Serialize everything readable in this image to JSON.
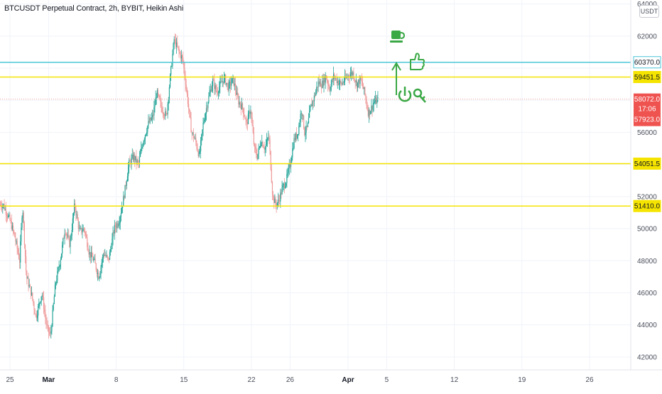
{
  "title": "BTCUSDT Perpetual Contract, 2h, BYBIT, Heikin Ashi",
  "currency": "USDT",
  "colors": {
    "up": "#26a69a",
    "down": "#ef9a9a",
    "yellow_line": "#f5e400",
    "cyan_line": "#4dc6d8",
    "annotation": "#3aa845",
    "last_price_bg": "#ef5350"
  },
  "chart_data": {
    "type": "candlestick",
    "style": "Heikin Ashi",
    "interval": "2h",
    "exchange": "BYBIT",
    "symbol": "BTCUSDT Perpetual Contract",
    "ylim": [
      41300,
      64300
    ],
    "y_ticks": [
      42000,
      44000,
      46000,
      48000,
      50000,
      52000,
      56000,
      62000,
      64000
    ],
    "x_ticks": [
      {
        "label": "25",
        "x": 0,
        "bold": false
      },
      {
        "label": "Mar",
        "x": 4,
        "bold": true
      },
      {
        "label": "8",
        "x": 11,
        "bold": false
      },
      {
        "label": "15",
        "x": 18,
        "bold": false
      },
      {
        "label": "22",
        "x": 25,
        "bold": false
      },
      {
        "label": "26",
        "x": 29,
        "bold": false
      },
      {
        "label": "Apr",
        "x": 35,
        "bold": true
      },
      {
        "label": "5",
        "x": 39,
        "bold": false
      },
      {
        "label": "12",
        "x": 46,
        "bold": false
      },
      {
        "label": "19",
        "x": 53,
        "bold": false
      },
      {
        "label": "26",
        "x": 60,
        "bold": false
      }
    ],
    "price_path": [
      [
        -0.7,
        51500
      ],
      [
        0,
        50500
      ],
      [
        0.5,
        49500
      ],
      [
        1,
        48000
      ],
      [
        1.3,
        51500
      ],
      [
        1.7,
        47000
      ],
      [
        2.2,
        46000
      ],
      [
        2.7,
        44500
      ],
      [
        3.3,
        46000
      ],
      [
        3.8,
        43900
      ],
      [
        4.2,
        43300
      ],
      [
        4.7,
        46500
      ],
      [
        5.2,
        48000
      ],
      [
        5.7,
        50000
      ],
      [
        6.2,
        49000
      ],
      [
        6.7,
        51500
      ],
      [
        7.2,
        49800
      ],
      [
        7.7,
        50000
      ],
      [
        8.2,
        48500
      ],
      [
        8.7,
        48000
      ],
      [
        9.2,
        47000
      ],
      [
        9.7,
        48500
      ],
      [
        10.2,
        48000
      ],
      [
        10.8,
        50000
      ],
      [
        11.3,
        50500
      ],
      [
        11.8,
        52000
      ],
      [
        12.3,
        54000
      ],
      [
        12.8,
        54500
      ],
      [
        13.3,
        54000
      ],
      [
        13.8,
        55500
      ],
      [
        14.3,
        56500
      ],
      [
        14.8,
        57000
      ],
      [
        15.2,
        58500
      ],
      [
        15.7,
        57500
      ],
      [
        16.2,
        57000
      ],
      [
        16.6,
        59500
      ],
      [
        17,
        61800
      ],
      [
        17.5,
        61000
      ],
      [
        17.9,
        60500
      ],
      [
        18.4,
        58000
      ],
      [
        18.8,
        56000
      ],
      [
        19.2,
        55500
      ],
      [
        19.6,
        54500
      ],
      [
        20,
        56500
      ],
      [
        20.5,
        58000
      ],
      [
        21,
        59200
      ],
      [
        21.4,
        58500
      ],
      [
        21.8,
        59000
      ],
      [
        22.2,
        59400
      ],
      [
        22.6,
        58800
      ],
      [
        23.1,
        59300
      ],
      [
        23.6,
        58000
      ],
      [
        24.1,
        57500
      ],
      [
        24.5,
        56500
      ],
      [
        24.9,
        57500
      ],
      [
        25.3,
        55000
      ],
      [
        25.6,
        54500
      ],
      [
        26,
        55500
      ],
      [
        26.4,
        55000
      ],
      [
        26.8,
        55800
      ],
      [
        27.2,
        52000
      ],
      [
        27.5,
        51500
      ],
      [
        27.8,
        51700
      ],
      [
        28.2,
        52500
      ],
      [
        28.6,
        53000
      ],
      [
        29,
        54000
      ],
      [
        29.4,
        55500
      ],
      [
        29.8,
        56000
      ],
      [
        30.2,
        57500
      ],
      [
        30.5,
        56000
      ],
      [
        30.8,
        56300
      ],
      [
        31.1,
        57500
      ],
      [
        31.5,
        58200
      ],
      [
        31.9,
        59100
      ],
      [
        32.3,
        59000
      ],
      [
        32.7,
        59500
      ],
      [
        33.1,
        58700
      ],
      [
        33.5,
        59500
      ],
      [
        33.9,
        59200
      ],
      [
        34.3,
        59000
      ],
      [
        34.7,
        59300
      ],
      [
        35.1,
        59600
      ],
      [
        35.5,
        59700
      ],
      [
        35.9,
        59000
      ],
      [
        36.3,
        59300
      ],
      [
        36.7,
        58500
      ],
      [
        37.1,
        57200
      ],
      [
        37.4,
        57500
      ],
      [
        37.7,
        57900
      ],
      [
        38.1,
        58000
      ]
    ],
    "horizontal_levels": [
      {
        "price": 60370.0,
        "label": "60370.0",
        "color": "cyan"
      },
      {
        "price": 59451.5,
        "label": "59451.5",
        "color": "yellow"
      },
      {
        "price": 54051.5,
        "label": "54051.5",
        "color": "yellow"
      },
      {
        "price": 51410.0,
        "label": "51410.0",
        "color": "yellow"
      }
    ],
    "last_price": {
      "price": 58072.0,
      "label": "58072.0",
      "countdown": "17:06",
      "low_label": "57923.0"
    }
  }
}
